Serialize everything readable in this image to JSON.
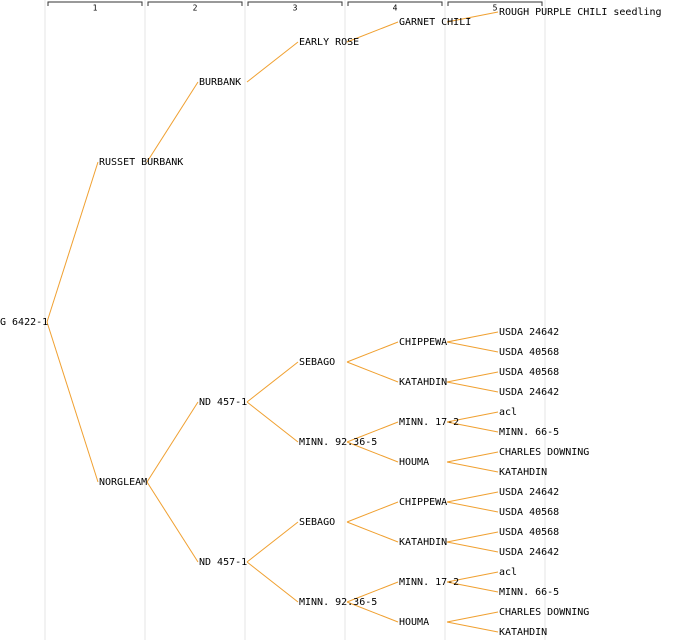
{
  "headers": [
    "1",
    "2",
    "3",
    "4",
    "5"
  ],
  "tree": {
    "label": "G 6422-1",
    "children": [
      {
        "label": "RUSSET BURBANK",
        "children": [
          {
            "label": "BURBANK",
            "children": [
              {
                "label": "EARLY ROSE",
                "children": [
                  {
                    "label": "GARNET CHILI",
                    "children": [
                      {
                        "label": "ROUGH PURPLE CHILI seedling"
                      },
                      null
                    ]
                  },
                  null
                ]
              },
              null
            ]
          },
          null
        ]
      },
      {
        "label": "NORGLEAM",
        "children": [
          {
            "label": "ND 457-1",
            "children": [
              {
                "label": "SEBAGO",
                "children": [
                  {
                    "label": "CHIPPEWA",
                    "children": [
                      {
                        "label": "USDA 24642"
                      },
                      {
                        "label": "USDA 40568"
                      }
                    ]
                  },
                  {
                    "label": "KATAHDIN",
                    "children": [
                      {
                        "label": "USDA 40568"
                      },
                      {
                        "label": "USDA 24642"
                      }
                    ]
                  }
                ]
              },
              {
                "label": "MINN. 92.36-5",
                "children": [
                  {
                    "label": "MINN. 17-2",
                    "children": [
                      {
                        "label": "acl"
                      },
                      {
                        "label": "MINN. 66-5"
                      }
                    ]
                  },
                  {
                    "label": "HOUMA",
                    "children": [
                      {
                        "label": "CHARLES DOWNING"
                      },
                      {
                        "label": "KATAHDIN"
                      }
                    ]
                  }
                ]
              }
            ]
          },
          {
            "label": "ND 457-1",
            "children": [
              {
                "label": "SEBAGO",
                "children": [
                  {
                    "label": "CHIPPEWA",
                    "children": [
                      {
                        "label": "USDA 24642"
                      },
                      {
                        "label": "USDA 40568"
                      }
                    ]
                  },
                  {
                    "label": "KATAHDIN",
                    "children": [
                      {
                        "label": "USDA 40568"
                      },
                      {
                        "label": "USDA 24642"
                      }
                    ]
                  }
                ]
              },
              {
                "label": "MINN. 92.36-5",
                "children": [
                  {
                    "label": "MINN. 17-2",
                    "children": [
                      {
                        "label": "acl"
                      },
                      {
                        "label": "MINN. 66-5"
                      }
                    ]
                  },
                  {
                    "label": "HOUMA",
                    "children": [
                      {
                        "label": "CHARLES DOWNING"
                      },
                      {
                        "label": "KATAHDIN"
                      }
                    ]
                  }
                ]
              }
            ]
          }
        ]
      }
    ]
  }
}
